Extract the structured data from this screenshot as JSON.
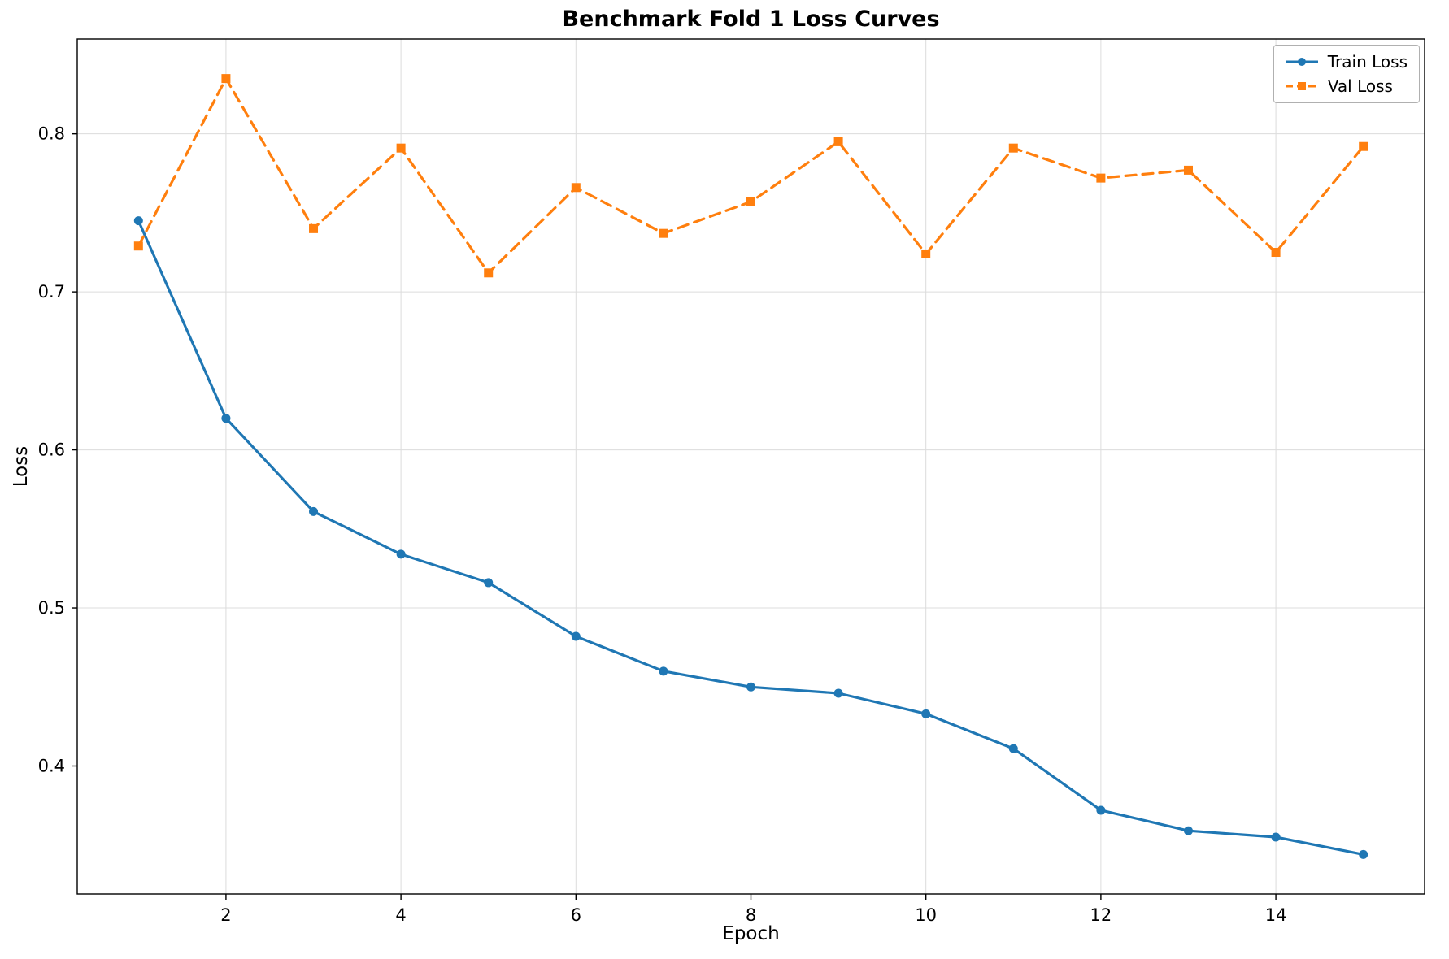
{
  "chart_data": {
    "type": "line",
    "title": "Benchmark Fold 1 Loss Curves",
    "xlabel": "Epoch",
    "ylabel": "Loss",
    "x": [
      1,
      2,
      3,
      4,
      5,
      6,
      7,
      8,
      9,
      10,
      11,
      12,
      13,
      14,
      15
    ],
    "series": [
      {
        "name": "Train Loss",
        "color": "#1f77b4",
        "line_style": "solid",
        "marker": "circle",
        "values": [
          0.745,
          0.62,
          0.561,
          0.534,
          0.516,
          0.482,
          0.46,
          0.45,
          0.446,
          0.433,
          0.411,
          0.372,
          0.359,
          0.355,
          0.344
        ]
      },
      {
        "name": "Val Loss",
        "color": "#ff7f0e",
        "line_style": "dashed",
        "marker": "square",
        "values": [
          0.729,
          0.835,
          0.74,
          0.791,
          0.712,
          0.766,
          0.737,
          0.757,
          0.795,
          0.724,
          0.791,
          0.772,
          0.777,
          0.725,
          0.792
        ]
      }
    ],
    "xticks": [
      2,
      4,
      6,
      8,
      10,
      12,
      14
    ],
    "yticks": [
      0.4,
      0.5,
      0.6,
      0.7,
      0.8
    ],
    "xlim": [
      0.3,
      15.7
    ],
    "ylim": [
      0.319,
      0.86
    ],
    "grid": true,
    "grid_color": "#dcdcdc",
    "background": "#ffffff",
    "legend_position": "upper right"
  }
}
